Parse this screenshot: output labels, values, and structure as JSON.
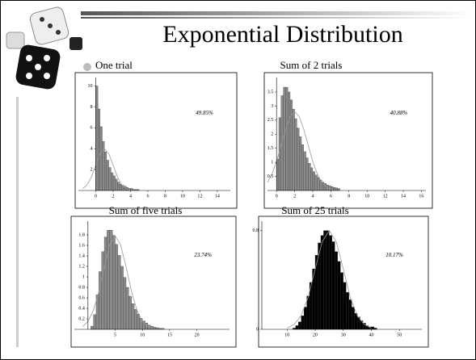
{
  "title": "Exponential Distribution",
  "chart_data": [
    {
      "type": "histogram",
      "title": "One trial",
      "annotation": "49.85%",
      "color": "#8a8a8a",
      "bins": [
        0,
        0.25,
        0.5,
        0.75,
        1,
        1.25,
        1.5,
        1.75,
        2,
        2.25,
        2.5,
        2.75,
        3,
        3.25,
        3.5,
        3.75,
        4,
        4.25,
        4.5,
        4.75,
        5
      ],
      "values": [
        10,
        7.8,
        6.1,
        4.7,
        3.7,
        2.9,
        2.2,
        1.7,
        1.4,
        1.1,
        0.8,
        0.6,
        0.5,
        0.4,
        0.3,
        0.2,
        0.2,
        0.1,
        0.1,
        0.1
      ],
      "curve": {
        "color": "#999999",
        "x": [
          -1.5,
          -1,
          -0.5,
          0,
          0.5,
          1,
          1.5,
          2,
          2.5,
          3,
          3.5,
          4
        ],
        "values": [
          0.18,
          0.54,
          1.3,
          2.43,
          3.53,
          4,
          3.53,
          2.43,
          1.3,
          0.54,
          0.18,
          0.04
        ]
      },
      "xlim": [
        -2,
        15.5
      ],
      "ylim": [
        0,
        10.5
      ],
      "xticks": [
        0,
        2,
        4,
        6,
        8,
        10,
        12,
        14
      ],
      "yticks": [
        2,
        4,
        6,
        8,
        10
      ]
    },
    {
      "type": "histogram",
      "title": "Sum of 2 trials",
      "annotation": "40.88%",
      "color": "#8a8a8a",
      "bins": [
        0,
        0.25,
        0.5,
        0.75,
        1,
        1.25,
        1.5,
        1.75,
        2,
        2.25,
        2.5,
        2.75,
        3,
        3.25,
        3.5,
        3.75,
        4,
        4.25,
        4.5,
        4.75,
        5,
        5.25,
        5.5,
        5.75,
        6,
        6.25,
        6.5,
        6.75,
        7
      ],
      "values": [
        1.11,
        2.59,
        3.37,
        3.67,
        3.67,
        3.5,
        3.22,
        2.89,
        2.55,
        2.22,
        1.91,
        1.63,
        1.38,
        1.16,
        0.97,
        0.81,
        0.67,
        0.55,
        0.46,
        0.37,
        0.3,
        0.25,
        0.2,
        0.17,
        0.14,
        0.11,
        0.09,
        0.07
      ],
      "curve": {
        "color": "#999999",
        "x": [
          -1,
          -0.5,
          0,
          0.5,
          1,
          1.5,
          2,
          2.5,
          3,
          3.5,
          4,
          4.5,
          5,
          5.5,
          6
        ],
        "values": [
          0.29,
          0.59,
          1.03,
          1.6,
          2.18,
          2.63,
          2.8,
          2.63,
          2.18,
          1.6,
          1.03,
          0.59,
          0.29,
          0.13,
          0.05
        ]
      },
      "xlim": [
        -1,
        16.5
      ],
      "ylim": [
        0,
        3.9
      ],
      "xticks": [
        0,
        2,
        4,
        6,
        8,
        10,
        12,
        14,
        16
      ],
      "yticks": [
        0.5,
        1,
        1.5,
        2,
        2.5,
        3,
        3.5
      ]
    },
    {
      "type": "histogram",
      "title": "Sum of five trials",
      "annotation": "23.74%",
      "color": "#8a8a8a",
      "bins": [
        0,
        0.5,
        1,
        1.5,
        2,
        2.5,
        3,
        3.5,
        4,
        4.5,
        5,
        5.5,
        6,
        6.5,
        7,
        7.5,
        8,
        8.5,
        9,
        9.5,
        10,
        10.5,
        11,
        11.5,
        12,
        12.5,
        13,
        13.5,
        14
      ],
      "values": [
        0,
        0.06,
        0.28,
        0.66,
        1.1,
        1.48,
        1.76,
        1.89,
        1.89,
        1.79,
        1.62,
        1.41,
        1.2,
        0.99,
        0.8,
        0.63,
        0.49,
        0.38,
        0.29,
        0.21,
        0.16,
        0.12,
        0.08,
        0.06,
        0.04,
        0.03,
        0.02,
        0.02
      ],
      "curve": {
        "color": "#999999",
        "x": [
          -1,
          0,
          1,
          2,
          3,
          4,
          5,
          6,
          7,
          8,
          9,
          10,
          11,
          12
        ],
        "values": [
          0.05,
          0.15,
          0.36,
          0.72,
          1.19,
          1.61,
          1.78,
          1.61,
          1.19,
          0.72,
          0.36,
          0.15,
          0.05,
          0.02
        ]
      },
      "xlim": [
        -2.5,
        26
      ],
      "ylim": [
        0,
        2
      ],
      "xticks": [
        5,
        10,
        15,
        20
      ],
      "yticks": [
        0.2,
        0.4,
        0.6,
        0.8,
        1,
        1.2,
        1.4,
        1.6,
        1.8
      ]
    },
    {
      "type": "histogram",
      "title": "Sum of 25 trials",
      "annotation": "10.17%",
      "color": "#000000",
      "bins": [
        12,
        13,
        14,
        15,
        16,
        17,
        18,
        19,
        20,
        21,
        22,
        23,
        24,
        25,
        26,
        27,
        28,
        29,
        30,
        31,
        32,
        33,
        34,
        35,
        36,
        37,
        38,
        39,
        40,
        41,
        42
      ],
      "values": [
        0.01,
        0.03,
        0.06,
        0.11,
        0.18,
        0.27,
        0.38,
        0.49,
        0.6,
        0.7,
        0.76,
        0.8,
        0.8,
        0.76,
        0.71,
        0.63,
        0.55,
        0.46,
        0.38,
        0.3,
        0.24,
        0.18,
        0.13,
        0.1,
        0.07,
        0.05,
        0.03,
        0.02,
        0.02,
        0.01
      ],
      "curve": {
        "color": "#999999",
        "x": [
          10,
          12.5,
          15,
          17.5,
          20,
          22.5,
          25,
          27.5,
          30,
          32.5,
          35,
          37.5,
          40
        ],
        "values": [
          0.01,
          0.04,
          0.11,
          0.26,
          0.49,
          0.71,
          0.8,
          0.71,
          0.49,
          0.26,
          0.11,
          0.04,
          0.01
        ]
      },
      "xlim": [
        1,
        58
      ],
      "ylim": [
        0,
        0.85
      ],
      "xticks": [
        10,
        20,
        30,
        40,
        50
      ],
      "yticks": [
        0,
        0.8
      ]
    }
  ]
}
